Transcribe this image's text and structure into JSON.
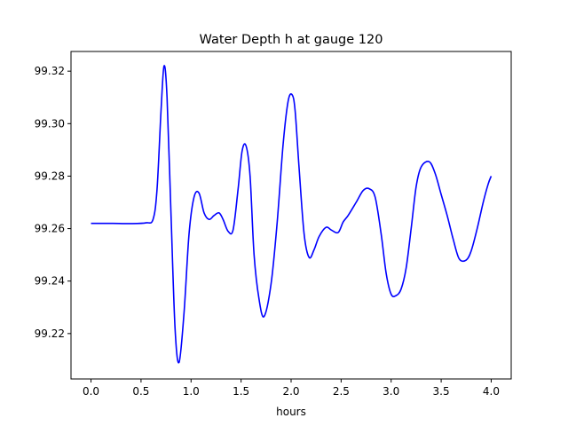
{
  "chart_data": {
    "type": "line",
    "title": "Water Depth h at gauge 120",
    "xlabel": "hours",
    "ylabel": "",
    "xlim": [
      -0.2,
      4.2
    ],
    "ylim": [
      99.2027,
      99.3275
    ],
    "xticks": [
      0.0,
      0.5,
      1.0,
      1.5,
      2.0,
      2.5,
      3.0,
      3.5,
      4.0
    ],
    "xtick_labels": [
      "0.0",
      "0.5",
      "1.0",
      "1.5",
      "2.0",
      "2.5",
      "3.0",
      "3.5",
      "4.0"
    ],
    "yticks": [
      99.22,
      99.24,
      99.26,
      99.28,
      99.3,
      99.32
    ],
    "ytick_labels": [
      "99.22",
      "99.24",
      "99.26",
      "99.28",
      "99.30",
      "99.32"
    ],
    "grid": false,
    "series": [
      {
        "color": "#0000ff",
        "x": [
          0.0,
          0.2,
          0.4,
          0.55,
          0.62,
          0.66,
          0.7,
          0.73,
          0.76,
          0.8,
          0.84,
          0.88,
          0.93,
          0.98,
          1.03,
          1.08,
          1.13,
          1.18,
          1.23,
          1.28,
          1.32,
          1.37,
          1.42,
          1.47,
          1.51,
          1.55,
          1.59,
          1.63,
          1.68,
          1.73,
          1.8,
          1.86,
          1.92,
          1.97,
          2.01,
          2.04,
          2.08,
          2.13,
          2.18,
          2.23,
          2.28,
          2.35,
          2.4,
          2.47,
          2.52,
          2.57,
          2.65,
          2.72,
          2.78,
          2.84,
          2.9,
          2.95,
          3.0,
          3.05,
          3.1,
          3.15,
          3.2,
          3.25,
          3.3,
          3.38,
          3.44,
          3.5,
          3.56,
          3.62,
          3.68,
          3.75,
          3.8,
          3.86,
          3.92,
          3.97,
          4.0
        ],
        "y": [
          99.262,
          99.262,
          99.2619,
          99.2622,
          99.2635,
          99.275,
          99.305,
          99.322,
          99.31,
          99.265,
          99.222,
          99.209,
          99.228,
          99.258,
          99.272,
          99.2735,
          99.266,
          99.2635,
          99.265,
          99.266,
          99.2635,
          99.259,
          99.2595,
          99.275,
          99.2895,
          99.2915,
          99.28,
          99.25,
          99.233,
          99.2265,
          99.239,
          99.262,
          99.292,
          99.3085,
          99.311,
          99.305,
          99.283,
          99.258,
          99.249,
          99.252,
          99.257,
          99.2605,
          99.2595,
          99.2585,
          99.2625,
          99.265,
          99.27,
          99.2745,
          99.2752,
          99.272,
          99.258,
          99.243,
          99.235,
          99.2345,
          99.237,
          99.245,
          99.26,
          99.276,
          99.2835,
          99.2855,
          99.281,
          99.273,
          99.265,
          99.256,
          99.2485,
          99.248,
          99.2515,
          99.26,
          99.27,
          99.277,
          99.28
        ]
      }
    ]
  }
}
